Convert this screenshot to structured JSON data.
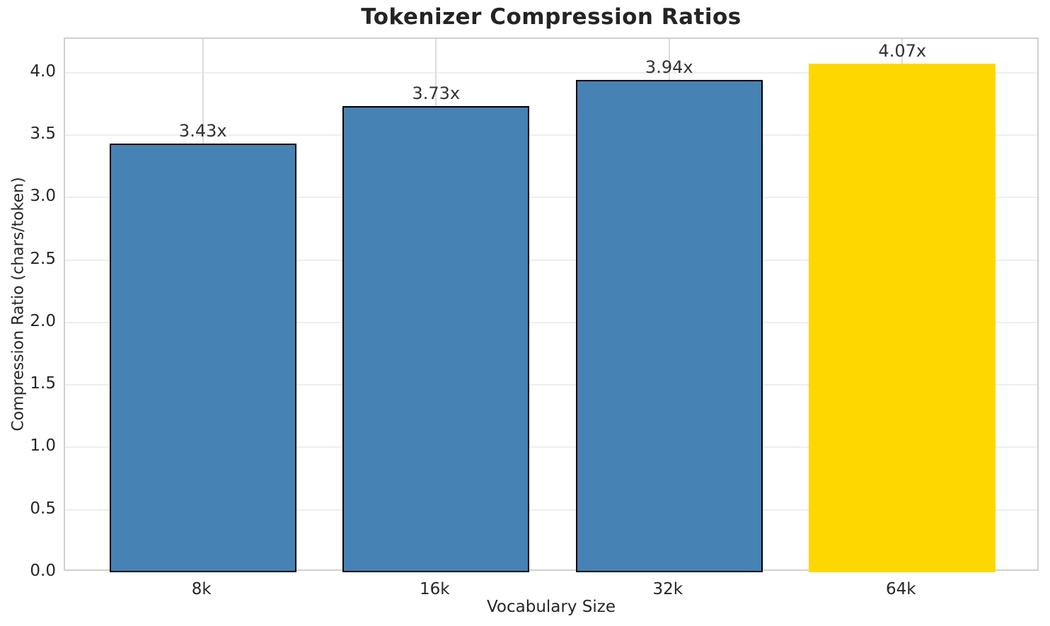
{
  "chart_data": {
    "type": "bar",
    "title": "Tokenizer Compression Ratios",
    "xlabel": "Vocabulary Size",
    "ylabel": "Compression Ratio (chars/token)",
    "categories": [
      "8k",
      "16k",
      "32k",
      "64k"
    ],
    "values": [
      3.43,
      3.73,
      3.94,
      4.07
    ],
    "bar_labels": [
      "3.43x",
      "3.73x",
      "3.94x",
      "4.07x"
    ],
    "highlight_index": 3,
    "ylim": [
      0,
      4.27
    ],
    "yticks": [
      {
        "value": 0.0,
        "label": "0.0"
      },
      {
        "value": 0.5,
        "label": "0.5"
      },
      {
        "value": 1.0,
        "label": "1.0"
      },
      {
        "value": 1.5,
        "label": "1.5"
      },
      {
        "value": 2.0,
        "label": "2.0"
      },
      {
        "value": 2.5,
        "label": "2.5"
      },
      {
        "value": 3.0,
        "label": "3.0"
      },
      {
        "value": 3.5,
        "label": "3.5"
      },
      {
        "value": 4.0,
        "label": "4.0"
      }
    ],
    "grid": {
      "horizontal": true,
      "vertical": true
    },
    "legend": "none",
    "colors": {
      "bar": "#4682B4",
      "highlight_bar": "#FFD700",
      "bar_edge": "#000000",
      "grid_horizontal": "#eeeeee",
      "grid_vertical": "#dcdcdc",
      "spine": "#d0d0d0",
      "text": "#262626"
    }
  }
}
